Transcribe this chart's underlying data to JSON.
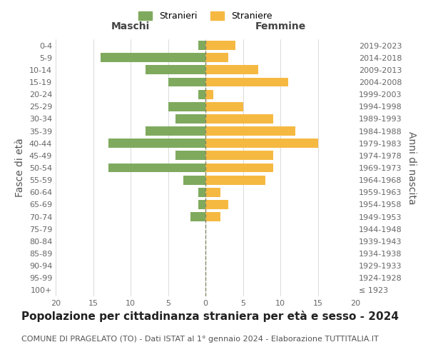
{
  "age_groups": [
    "100+",
    "95-99",
    "90-94",
    "85-89",
    "80-84",
    "75-79",
    "70-74",
    "65-69",
    "60-64",
    "55-59",
    "50-54",
    "45-49",
    "40-44",
    "35-39",
    "30-34",
    "25-29",
    "20-24",
    "15-19",
    "10-14",
    "5-9",
    "0-4"
  ],
  "birth_years": [
    "≤ 1923",
    "1924-1928",
    "1929-1933",
    "1934-1938",
    "1939-1943",
    "1944-1948",
    "1949-1953",
    "1954-1958",
    "1959-1963",
    "1964-1968",
    "1969-1973",
    "1974-1978",
    "1979-1983",
    "1984-1988",
    "1989-1993",
    "1994-1998",
    "1999-2003",
    "2004-2008",
    "2009-2013",
    "2014-2018",
    "2019-2023"
  ],
  "maschi": [
    0,
    0,
    0,
    0,
    0,
    0,
    2,
    1,
    1,
    3,
    13,
    4,
    13,
    8,
    4,
    5,
    1,
    5,
    8,
    14,
    1
  ],
  "femmine": [
    0,
    0,
    0,
    0,
    0,
    0,
    2,
    3,
    2,
    8,
    9,
    9,
    15,
    12,
    9,
    5,
    1,
    11,
    7,
    3,
    4
  ],
  "maschi_color": "#7faa5e",
  "femmine_color": "#f5b942",
  "background_color": "#ffffff",
  "grid_color": "#cccccc",
  "title": "Popolazione per cittadinanza straniera per età e sesso - 2024",
  "subtitle": "COMUNE DI PRAGELATO (TO) - Dati ISTAT al 1° gennaio 2024 - Elaborazione TUTTITALIA.IT",
  "xlabel_left": "Maschi",
  "xlabel_right": "Femmine",
  "ylabel_left": "Fasce di età",
  "ylabel_right": "Anni di nascita",
  "legend_maschi": "Stranieri",
  "legend_femmine": "Straniere",
  "xlim": 20,
  "title_fontsize": 11,
  "subtitle_fontsize": 8,
  "tick_fontsize": 8,
  "label_fontsize": 10
}
